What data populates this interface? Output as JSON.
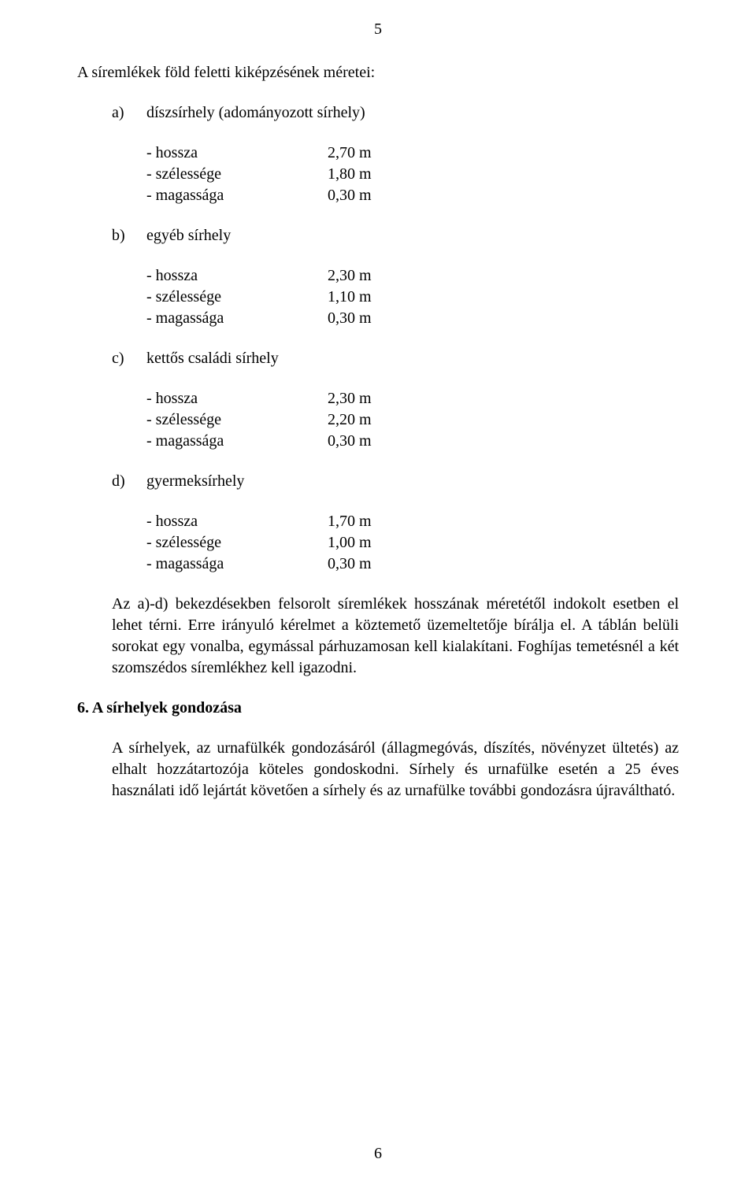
{
  "page_number_top": "5",
  "page_number_bottom": "6",
  "heading": "A síremlékek föld feletti kiképzésének méretei:",
  "items": [
    {
      "marker": "a)",
      "label": "díszsírhely (adományozott sírhely)"
    },
    {
      "marker": "b)",
      "label": "egyéb sírhely"
    },
    {
      "marker": "c)",
      "label": "kettős családi sírhely"
    },
    {
      "marker": "d)",
      "label": "gyermeksírhely"
    }
  ],
  "measures": {
    "a": [
      {
        "label": "- hossza",
        "value": "2,70 m"
      },
      {
        "label": "- szélessége",
        "value": "1,80 m"
      },
      {
        "label": "- magassága",
        "value": "0,30 m"
      }
    ],
    "b": [
      {
        "label": "- hossza",
        "value": "2,30 m"
      },
      {
        "label": "- szélessége",
        "value": "1,10 m"
      },
      {
        "label": "- magassága",
        "value": "0,30 m"
      }
    ],
    "c": [
      {
        "label": "- hossza",
        "value": "2,30 m"
      },
      {
        "label": "- szélessége",
        "value": "2,20 m"
      },
      {
        "label": "- magassága",
        "value": "0,30 m"
      }
    ],
    "d": [
      {
        "label": "- hossza",
        "value": "1,70 m"
      },
      {
        "label": "- szélessége",
        "value": "1,00 m"
      },
      {
        "label": "- magassága",
        "value": "0,30 m"
      }
    ]
  },
  "paragraph_ad": "Az a)-d) bekezdésekben felsorolt síremlékek hosszának méretétől indokolt esetben el lehet térni. Erre irányuló kérelmet a köztemető üzemeltetője bírálja el. A táblán belüli sorokat egy vonalba, egymással párhuzamosan kell kialakítani. Foghíjas temetésnél a két szomszédos síremlékhez kell igazodni.",
  "section6_heading": "6. A sírhelyek gondozása",
  "section6_body": "A sírhelyek, az urnafülkék gondozásáról (állagmegóvás, díszítés, növényzet ültetés) az elhalt hozzátartozója köteles gondoskodni. Sírhely és  urnafülke esetén a 25 éves használati idő lejártát követően a sírhely és az urnafülke további gondozásra újraváltható.",
  "style": {
    "font_family": "Times New Roman",
    "font_size_pt": 15,
    "text_color": "#000000",
    "background_color": "#ffffff"
  }
}
